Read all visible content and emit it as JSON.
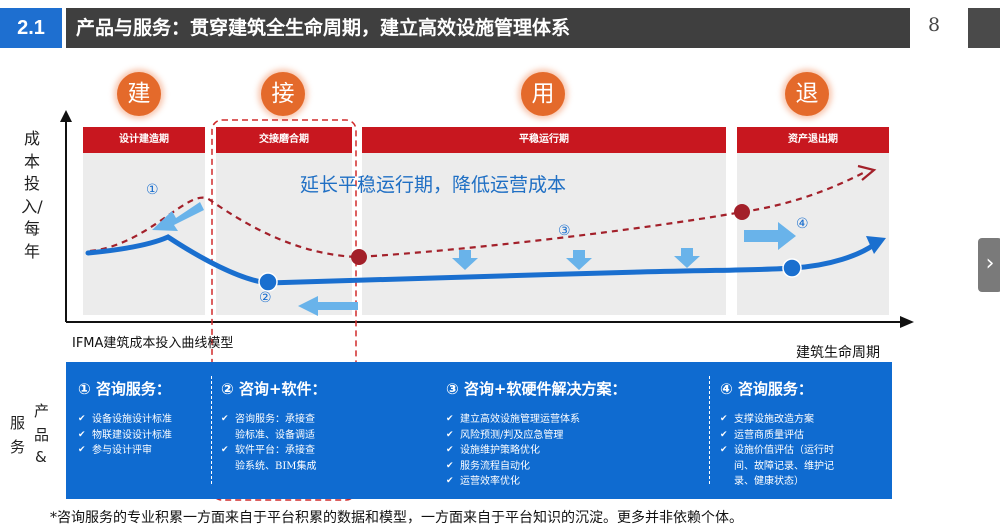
{
  "header": {
    "section_number": "2.1",
    "title": "产品与服务：贯穿建筑全生命周期，建立高效设施管理体系",
    "page_number": "8"
  },
  "phases": [
    "建",
    "接",
    "用",
    "退"
  ],
  "stages": [
    "设计建造期",
    "交接磨合期",
    "平稳运行期",
    "资产退出期"
  ],
  "highlight_text": "延长平稳运行期，降低运营成本",
  "markers": [
    "①",
    "②",
    "③",
    "④"
  ],
  "y_axis_label": "成本投入/每年",
  "x_axis_label": "建筑生命周期",
  "model_label": "IFMA建筑成本投入曲线模型",
  "products_services_label": [
    "服",
    "务",
    "产",
    "品",
    "&"
  ],
  "columns": [
    {
      "title": "① 咨询服务：",
      "items": [
        "设备设施设计标准",
        "物联建设设计标准",
        "参与设计评审"
      ]
    },
    {
      "title": "② 咨询+软件：",
      "items": [
        "咨询服务：承接查",
        "验标准、设备调适",
        "软件平台：承接查",
        "验系统、BIM集成"
      ]
    },
    {
      "title": "③ 咨询+软硬件解决方案：",
      "items": [
        "建立高效设施管理运营体系",
        "风险预测/判及应急管理",
        "设施维护策略优化",
        "服务流程自动化",
        "运营效率优化"
      ]
    },
    {
      "title": "④ 咨询服务：",
      "items": [
        "支撑设施改造方案",
        "运营商质量评估",
        "设施价值评估（运行时",
        "间、故障记录、维护记",
        "录、健康状态）"
      ]
    }
  ],
  "footnote": "*咨询服务的专业积累一方面来自于平台积累的数据和模型，一方面来自于平台知识的沉淀。更多并非依赖个体。",
  "colors": {
    "accent_blue": "#1e6fd0",
    "header_dark": "#3f3f3f",
    "stage_red": "#c8171f",
    "phase_orange": "#e46a2b",
    "curve_blue": "#1a6fcf",
    "dashed_curve": "#a3202a",
    "arrow_light_blue": "#69b3ea"
  }
}
